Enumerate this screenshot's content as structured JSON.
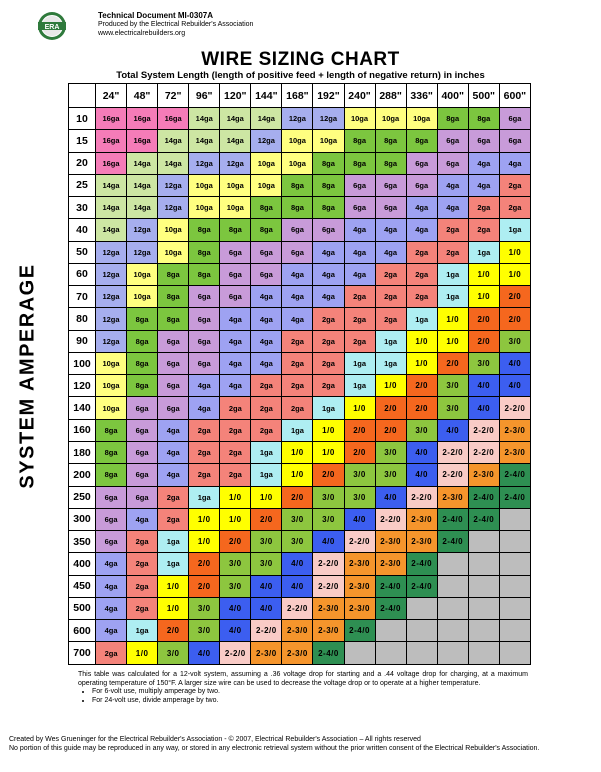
{
  "header": {
    "doc_id": "Technical Document MI-0307A",
    "producer": "Produced by the Electrical Rebuilder's Association",
    "website": "www.electricalrebuilders.org",
    "logo_text": "ERA"
  },
  "title": "WIRE SIZING CHART",
  "subtitle": "Total System Length (length of positive feed + length of negative return) in inches",
  "vertical_label": "SYSTEM AMPERAGE",
  "lengths": [
    "24\"",
    "48\"",
    "72\"",
    "96\"",
    "120\"",
    "144\"",
    "168\"",
    "192\"",
    "240\"",
    "288\"",
    "336\"",
    "400\"",
    "500\"",
    "600\""
  ],
  "amperages": [
    "10",
    "15",
    "20",
    "25",
    "30",
    "40",
    "50",
    "60",
    "70",
    "80",
    "90",
    "100",
    "120",
    "140",
    "160",
    "180",
    "200",
    "250",
    "300",
    "350",
    "400",
    "450",
    "500",
    "600",
    "700"
  ],
  "gauges": [
    [
      "16ga",
      "16ga",
      "16ga",
      "14ga",
      "14ga",
      "14ga",
      "12ga",
      "12ga",
      "10ga",
      "10ga",
      "10ga",
      "8ga",
      "8ga",
      "6ga"
    ],
    [
      "16ga",
      "16ga",
      "14ga",
      "14ga",
      "14ga",
      "12ga",
      "10ga",
      "10ga",
      "8ga",
      "8ga",
      "8ga",
      "6ga",
      "6ga",
      "6ga"
    ],
    [
      "16ga",
      "14ga",
      "14ga",
      "12ga",
      "12ga",
      "10ga",
      "10ga",
      "8ga",
      "8ga",
      "8ga",
      "6ga",
      "6ga",
      "4ga",
      "4ga"
    ],
    [
      "14ga",
      "14ga",
      "12ga",
      "10ga",
      "10ga",
      "10ga",
      "8ga",
      "8ga",
      "6ga",
      "6ga",
      "6ga",
      "4ga",
      "4ga",
      "2ga"
    ],
    [
      "14ga",
      "14ga",
      "12ga",
      "10ga",
      "10ga",
      "8ga",
      "8ga",
      "8ga",
      "6ga",
      "6ga",
      "4ga",
      "4ga",
      "2ga",
      "2ga"
    ],
    [
      "14ga",
      "12ga",
      "10ga",
      "8ga",
      "8ga",
      "8ga",
      "6ga",
      "6ga",
      "4ga",
      "4ga",
      "4ga",
      "2ga",
      "2ga",
      "1ga"
    ],
    [
      "12ga",
      "12ga",
      "10ga",
      "8ga",
      "6ga",
      "6ga",
      "6ga",
      "4ga",
      "4ga",
      "4ga",
      "2ga",
      "2ga",
      "1ga",
      "1/0"
    ],
    [
      "12ga",
      "10ga",
      "8ga",
      "8ga",
      "6ga",
      "6ga",
      "4ga",
      "4ga",
      "4ga",
      "2ga",
      "2ga",
      "1ga",
      "1/0",
      "1/0"
    ],
    [
      "12ga",
      "10ga",
      "8ga",
      "6ga",
      "6ga",
      "4ga",
      "4ga",
      "4ga",
      "2ga",
      "2ga",
      "2ga",
      "1ga",
      "1/0",
      "2/0"
    ],
    [
      "12ga",
      "8ga",
      "8ga",
      "6ga",
      "4ga",
      "4ga",
      "4ga",
      "2ga",
      "2ga",
      "2ga",
      "1ga",
      "1/0",
      "2/0",
      "2/0"
    ],
    [
      "12ga",
      "8ga",
      "6ga",
      "6ga",
      "4ga",
      "4ga",
      "2ga",
      "2ga",
      "2ga",
      "1ga",
      "1/0",
      "1/0",
      "2/0",
      "3/0"
    ],
    [
      "10ga",
      "8ga",
      "6ga",
      "6ga",
      "4ga",
      "4ga",
      "2ga",
      "2ga",
      "1ga",
      "1ga",
      "1/0",
      "2/0",
      "3/0",
      "4/0"
    ],
    [
      "10ga",
      "8ga",
      "6ga",
      "4ga",
      "4ga",
      "2ga",
      "2ga",
      "2ga",
      "1ga",
      "1/0",
      "2/0",
      "3/0",
      "4/0",
      "4/0"
    ],
    [
      "10ga",
      "6ga",
      "6ga",
      "4ga",
      "2ga",
      "2ga",
      "2ga",
      "1ga",
      "1/0",
      "2/0",
      "2/0",
      "3/0",
      "4/0",
      "2-2/0"
    ],
    [
      "8ga",
      "6ga",
      "4ga",
      "2ga",
      "2ga",
      "2ga",
      "1ga",
      "1/0",
      "2/0",
      "2/0",
      "3/0",
      "4/0",
      "2-2/0",
      "2-3/0"
    ],
    [
      "8ga",
      "6ga",
      "4ga",
      "2ga",
      "2ga",
      "1ga",
      "1/0",
      "1/0",
      "2/0",
      "3/0",
      "4/0",
      "2-2/0",
      "2-2/0",
      "2-3/0"
    ],
    [
      "8ga",
      "6ga",
      "4ga",
      "2ga",
      "2ga",
      "1ga",
      "1/0",
      "2/0",
      "3/0",
      "3/0",
      "4/0",
      "2-2/0",
      "2-3/0",
      "2-4/0"
    ],
    [
      "6ga",
      "6ga",
      "2ga",
      "1ga",
      "1/0",
      "1/0",
      "2/0",
      "3/0",
      "3/0",
      "4/0",
      "2-2/0",
      "2-3/0",
      "2-4/0",
      "2-4/0"
    ],
    [
      "6ga",
      "4ga",
      "2ga",
      "1/0",
      "1/0",
      "2/0",
      "3/0",
      "3/0",
      "4/0",
      "2-2/0",
      "2-3/0",
      "2-4/0",
      "2-4/0",
      ""
    ],
    [
      "6ga",
      "2ga",
      "1ga",
      "1/0",
      "2/0",
      "3/0",
      "3/0",
      "4/0",
      "2-2/0",
      "2-3/0",
      "2-3/0",
      "2-4/0",
      "",
      ""
    ],
    [
      "4ga",
      "2ga",
      "1ga",
      "2/0",
      "3/0",
      "3/0",
      "4/0",
      "2-2/0",
      "2-3/0",
      "2-3/0",
      "2-4/0",
      "",
      "",
      ""
    ],
    [
      "4ga",
      "2ga",
      "1/0",
      "2/0",
      "3/0",
      "4/0",
      "4/0",
      "2-2/0",
      "2-3/0",
      "2-4/0",
      "2-4/0",
      "",
      "",
      ""
    ],
    [
      "4ga",
      "2ga",
      "1/0",
      "3/0",
      "4/0",
      "4/0",
      "2-2/0",
      "2-3/0",
      "2-3/0",
      "2-4/0",
      "",
      "",
      "",
      ""
    ],
    [
      "4ga",
      "1ga",
      "2/0",
      "3/0",
      "4/0",
      "2-2/0",
      "2-3/0",
      "2-3/0",
      "2-4/0",
      "",
      "",
      "",
      "",
      ""
    ],
    [
      "2ga",
      "1/0",
      "3/0",
      "4/0",
      "2-2/0",
      "2-3/0",
      "2-3/0",
      "2-4/0",
      "",
      "",
      "",
      "",
      "",
      ""
    ]
  ],
  "gauge_colors": {
    "16ga": "#F57CB8",
    "14ga": "#CDE6A3",
    "12ga": "#A6AEEE",
    "10ga": "#FFFF80",
    "8ga": "#7CC63F",
    "6ga": "#C89BD9",
    "4ga": "#9EA2F2",
    "2ga": "#F4837A",
    "1ga": "#AEEEF2",
    "1/0": "#FFFF00",
    "2/0": "#F5671E",
    "3/0": "#8DC63F",
    "4/0": "#3C5EF0",
    "2-2/0": "#F9CBC6",
    "2-3/0": "#F5952C",
    "2-4/0": "#2E8F52",
    "": "#BDBDBD"
  },
  "notes": {
    "paragraph": "This table was calculated for a 12-volt system, assuming a .36 voltage drop for starting and a .44 voltage drop for charging, at a maximum operating temperature of 150°F.  A larger size wire can be used to decrease the voltage drop or to operate at a higher temperature.",
    "bullets": [
      "For 6-volt use, multiply amperage by two.",
      "For 24-volt use, divide amperage by two."
    ]
  },
  "footer": {
    "line1": "Created by Wes Grueninger for the Electrical Rebuilder's Association - © 2007, Electrical Rebuilder's Association – All rights reserved",
    "line2": "No portion of this guide may be reproduced in any way, or stored in any electronic retrieval system without the prior written consent of the Electrical Rebuilder's Association."
  }
}
